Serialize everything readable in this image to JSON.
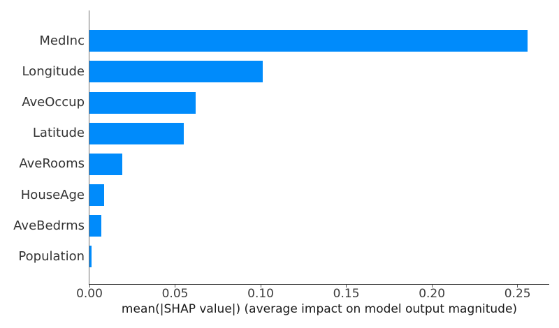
{
  "chart_data": {
    "type": "bar",
    "orientation": "horizontal",
    "title": "",
    "xlabel": "mean(|SHAP value|) (average impact on model output magnitude)",
    "ylabel": "",
    "categories": [
      "MedInc",
      "Longitude",
      "AveOccup",
      "Latitude",
      "AveRooms",
      "HouseAge",
      "AveBedrms",
      "Population"
    ],
    "values": [
      0.256,
      0.101,
      0.062,
      0.055,
      0.019,
      0.0085,
      0.0068,
      0.0012
    ],
    "xlim": [
      0,
      0.2685
    ],
    "xticks": [
      0.0,
      0.05,
      0.1,
      0.15,
      0.2,
      0.25
    ],
    "xtick_labels": [
      "0.00",
      "0.05",
      "0.10",
      "0.15",
      "0.20",
      "0.25"
    ],
    "bar_color": "#008bfb",
    "grid": false,
    "legend": null,
    "spines_hidden": [
      "top",
      "right"
    ]
  }
}
